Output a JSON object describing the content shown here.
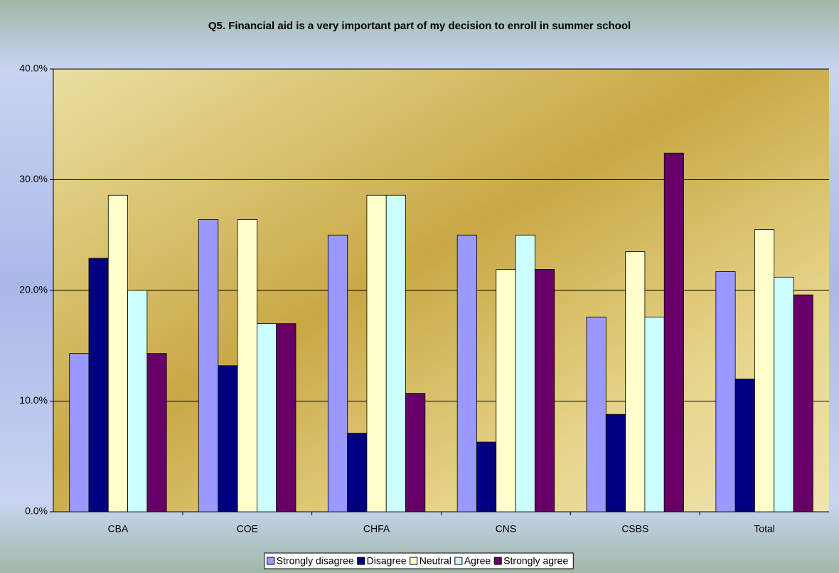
{
  "chart_data": {
    "type": "bar",
    "title": "Q5. Financial aid is a very important part of my decision to enroll in summer school",
    "categories": [
      "CBA",
      "COE",
      "CHFA",
      "CNS",
      "CSBS",
      "Total"
    ],
    "series": [
      {
        "name": "Strongly disagree",
        "color": "#9999ff",
        "values": [
          14.3,
          26.4,
          25.0,
          25.0,
          17.6,
          21.7
        ]
      },
      {
        "name": "Disagree",
        "color": "#000080",
        "values": [
          22.9,
          13.2,
          7.1,
          6.3,
          8.8,
          12.0
        ]
      },
      {
        "name": "Neutral",
        "color": "#ffffcc",
        "values": [
          28.6,
          26.4,
          28.6,
          21.9,
          23.5,
          25.5
        ]
      },
      {
        "name": "Agree",
        "color": "#ccffff",
        "values": [
          20.0,
          17.0,
          28.6,
          25.0,
          17.6,
          21.2
        ]
      },
      {
        "name": "Strongly agree",
        "color": "#660066",
        "values": [
          14.3,
          17.0,
          10.7,
          21.9,
          32.4,
          19.6
        ]
      }
    ],
    "ylim": [
      0,
      40
    ],
    "yticks": [
      {
        "value": 0,
        "label": "0.0%"
      },
      {
        "value": 10,
        "label": "10.0%"
      },
      {
        "value": 20,
        "label": "20.0%"
      },
      {
        "value": 30,
        "label": "30.0%"
      },
      {
        "value": 40,
        "label": "40.0%"
      }
    ],
    "grid": true,
    "legend": "bottom"
  }
}
